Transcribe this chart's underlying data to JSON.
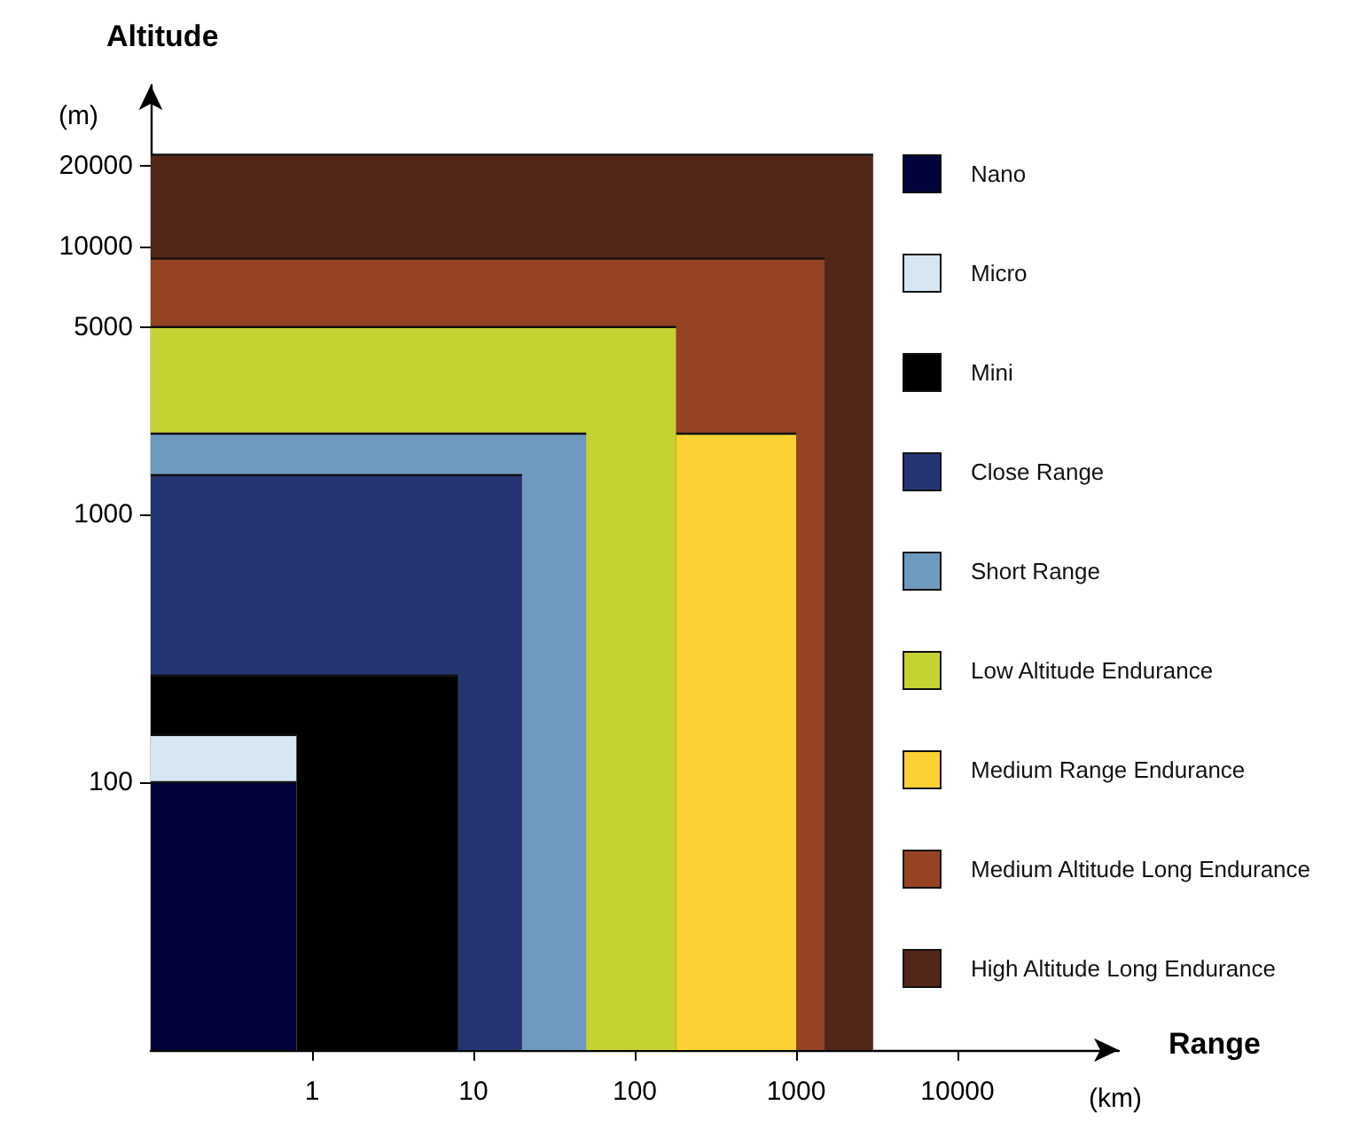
{
  "chart_data": {
    "type": "area",
    "xlabel": "Range\n(km)",
    "ylabel": "Altitude\n(m)",
    "xlim": [
      0.1,
      100000
    ],
    "xticks": [
      1,
      10,
      100,
      1000,
      10000
    ],
    "log": "xy",
    "ylim": [
      10,
      40000
    ],
    "yticks": [
      100,
      1000,
      5000,
      10000,
      20000
    ],
    "grid": false,
    "legend": "right",
    "series": [
      {
        "name": "Nano",
        "color": "#02033a",
        "x": [
          0.1,
          0.8
        ],
        "values": [
          100,
          100
        ]
      },
      {
        "name": "Micro",
        "color": "#d6e7f3",
        "x": [
          0.1,
          0.8
        ],
        "values": [
          150,
          150
        ]
      },
      {
        "name": "Mini",
        "color": "#000000",
        "x": [
          0.1,
          8
        ],
        "values": [
          250,
          250
        ]
      },
      {
        "name": "Close Range",
        "color": "#253574",
        "x": [
          0.1,
          20
        ],
        "values": [
          1400,
          1400
        ]
      },
      {
        "name": "Short Range",
        "color": "#6f9abf",
        "x": [
          0.1,
          50
        ],
        "values": [
          2000,
          2000
        ]
      },
      {
        "name": "Low Altitude Endurance",
        "color": "#c6d232",
        "x": [
          0.1,
          180
        ],
        "values": [
          5000,
          5000
        ]
      },
      {
        "name": "Medium Range Endurance",
        "color": "#fdd033",
        "x": [
          180,
          1000
        ],
        "values": [
          2000,
          2000
        ]
      },
      {
        "name": "Medium Altitude Long Endurance",
        "color": "#964325",
        "x": [
          0.1,
          1500
        ],
        "values": [
          9000,
          9000
        ]
      },
      {
        "name": "High Altitude Long Endurance",
        "color": "#522618",
        "x": [
          0.1,
          3000
        ],
        "values": [
          22000,
          22000
        ]
      }
    ]
  }
}
